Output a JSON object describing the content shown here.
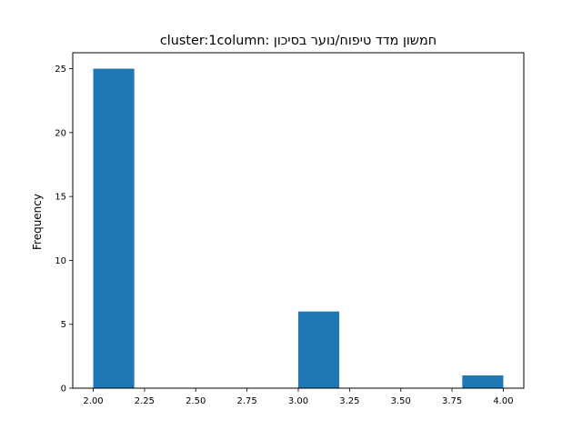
{
  "chart_data": {
    "type": "bar",
    "title": "cluster:1column: חמשון מדד טיפוח/נוער בסיכון",
    "xlabel": "",
    "ylabel": "Frequency",
    "xlim": [
      1.9,
      4.1
    ],
    "ylim": [
      0,
      26.25
    ],
    "x_ticks": [
      "2.00",
      "2.25",
      "2.50",
      "2.75",
      "3.00",
      "3.25",
      "3.50",
      "3.75",
      "4.00"
    ],
    "x_tick_values": [
      2.0,
      2.25,
      2.5,
      2.75,
      3.0,
      3.25,
      3.5,
      3.75,
      4.0
    ],
    "y_ticks": [
      "0",
      "5",
      "10",
      "15",
      "20",
      "25"
    ],
    "y_tick_values": [
      0,
      5,
      10,
      15,
      20,
      25
    ],
    "bins": [
      {
        "start": 2.0,
        "end": 2.2,
        "count": 25
      },
      {
        "start": 2.2,
        "end": 2.4,
        "count": 0
      },
      {
        "start": 2.4,
        "end": 2.6,
        "count": 0
      },
      {
        "start": 2.6,
        "end": 2.8,
        "count": 0
      },
      {
        "start": 2.8,
        "end": 3.0,
        "count": 0
      },
      {
        "start": 3.0,
        "end": 3.2,
        "count": 6
      },
      {
        "start": 3.2,
        "end": 3.4,
        "count": 0
      },
      {
        "start": 3.4,
        "end": 3.6,
        "count": 0
      },
      {
        "start": 3.6,
        "end": 3.8,
        "count": 0
      },
      {
        "start": 3.8,
        "end": 4.0,
        "count": 1
      }
    ],
    "bar_color": "#1f77b4",
    "grid": false,
    "legend": "none"
  }
}
